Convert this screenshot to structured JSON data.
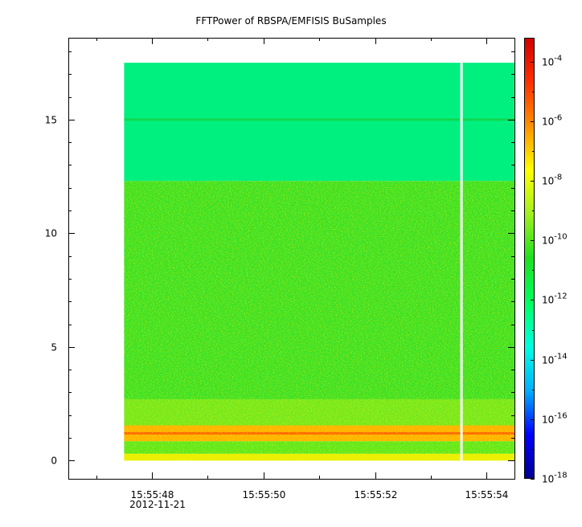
{
  "chart_data": {
    "type": "heatmap",
    "title": "FFTPower of RBSPA/EMFISIS  BuSamples",
    "xlabel": "",
    "ylabel": "",
    "x_date_label": "2012-11-21",
    "x_ticks": [
      {
        "label": "15:55:48",
        "t": 47.0
      },
      {
        "label": "15:55:50",
        "t": 49.0
      },
      {
        "label": "15:55:52",
        "t": 51.0
      },
      {
        "label": "15:55:54",
        "t": 53.0
      }
    ],
    "x_minor_ticks": [
      46.0,
      48.0,
      50.0,
      52.0
    ],
    "xlim": [
      45.5,
      53.5
    ],
    "y_ticks": [
      0,
      5,
      10,
      15
    ],
    "ylim": [
      -0.8,
      18.6
    ],
    "colorbar": {
      "scale": "log",
      "range_exp": [
        -18,
        -3.2
      ],
      "tick_exps": [
        -4,
        -6,
        -8,
        -10,
        -12,
        -14,
        -16,
        -18
      ],
      "colors": [
        "#00008f",
        "#0000ff",
        "#00b0ff",
        "#00ffe0",
        "#00ff60",
        "#20e020",
        "#a0f020",
        "#ffff00",
        "#ff9000",
        "#ff3000",
        "#d00000"
      ]
    },
    "data": {
      "t_start": 46.5,
      "t_end": 53.5,
      "gap_t": 52.55,
      "freq_max": 17.5,
      "bands": [
        {
          "y0": 12.3,
          "y1": 17.5,
          "level": "#00f080"
        },
        {
          "y0": 2.7,
          "y1": 12.3,
          "level": "#38e028"
        },
        {
          "y0": 1.55,
          "y1": 2.7,
          "level": "#70e820"
        },
        {
          "y0": 0.85,
          "y1": 1.55,
          "level": "#ffb000"
        },
        {
          "y0": 0.3,
          "y1": 0.85,
          "level": "#58e820"
        },
        {
          "y0": 0.0,
          "y1": 0.3,
          "level": "#e8f000"
        }
      ],
      "lines": [
        {
          "y": 15.0,
          "level": "#10d850"
        },
        {
          "y": 1.2,
          "level": "#ff6000"
        }
      ]
    }
  }
}
